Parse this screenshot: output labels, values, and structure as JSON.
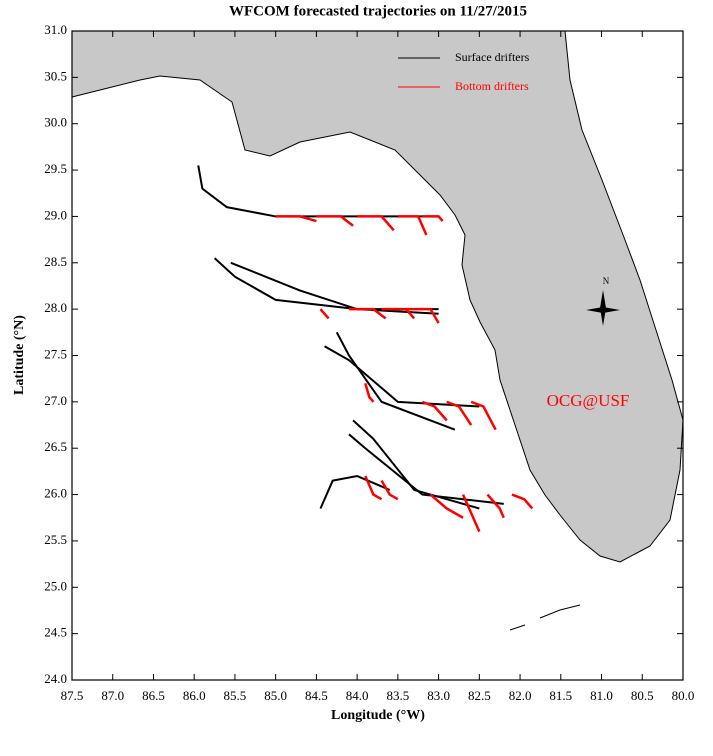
{
  "chart_data": {
    "type": "map",
    "title": "WFCOM forecasted trajectories on 11/27/2015",
    "x_label": "Longitude (°W)",
    "y_label": "Latitude (°N)",
    "annotation": "OCG@USF",
    "compass_label": "N",
    "legend": "top-right",
    "xlim": [
      87.5,
      80.0
    ],
    "ylim": [
      24.0,
      31.0
    ],
    "xticks": [
      87.5,
      {
        "value": 87,
        "label": "87.0"
      },
      86.5,
      {
        "value": 86,
        "label": "86.0"
      },
      85.5,
      {
        "value": 85,
        "label": "85.0"
      },
      84.5,
      {
        "value": 84,
        "label": "84.0"
      },
      83.5,
      {
        "value": 83,
        "label": "83.0"
      },
      82.5,
      {
        "value": 82,
        "label": "82.0"
      },
      81.5,
      {
        "value": 81,
        "label": "81.0"
      },
      80.5,
      {
        "value": 80,
        "label": "80.0"
      }
    ],
    "yticks": [
      {
        "value": 24,
        "label": "24.0"
      },
      24.5,
      {
        "value": 25,
        "label": "25.0"
      },
      25.5,
      {
        "value": 26,
        "label": "26.0"
      },
      26.5,
      {
        "value": 27,
        "label": "27.0"
      },
      27.5,
      {
        "value": 28,
        "label": "28.0"
      },
      28.5,
      {
        "value": 29,
        "label": "29.0"
      },
      29.5,
      {
        "value": 30,
        "label": "30.0"
      },
      30.5,
      {
        "value": 31,
        "label": "31.0"
      }
    ],
    "series": [
      {
        "name": "Surface drifters",
        "color": "#000000",
        "tracks": [
          {
            "x": [
              83.0,
              84.0,
              85.0,
              85.6,
              85.9,
              85.95
            ],
            "y": [
              29.0,
              29.0,
              29.0,
              29.1,
              29.3,
              29.55
            ]
          },
          {
            "x": [
              83.0,
              84.0,
              85.0,
              85.5,
              85.75
            ],
            "y": [
              28.0,
              28.0,
              28.1,
              28.35,
              28.55
            ]
          },
          {
            "x": [
              83.0,
              84.0,
              84.7,
              85.55
            ],
            "y": [
              27.95,
              28.0,
              28.2,
              28.5
            ]
          },
          {
            "x": [
              82.5,
              83.5,
              84.1,
              84.4
            ],
            "y": [
              26.95,
              27.0,
              27.45,
              27.6
            ]
          },
          {
            "x": [
              82.8,
              83.7,
              84.1,
              84.25
            ],
            "y": [
              26.7,
              27.0,
              27.5,
              27.75
            ]
          },
          {
            "x": [
              82.2,
              83.2,
              83.9,
              84.1
            ],
            "y": [
              25.9,
              26.0,
              26.5,
              26.65
            ]
          },
          {
            "x": [
              82.5,
              83.3,
              83.8,
              84.05
            ],
            "y": [
              25.85,
              26.05,
              26.6,
              26.8
            ]
          },
          {
            "x": [
              83.6,
              84.0,
              84.3,
              84.45
            ],
            "y": [
              26.05,
              26.2,
              26.15,
              25.85
            ]
          }
        ]
      },
      {
        "name": "Bottom drifters",
        "color": "#ff0000",
        "tracks": [
          {
            "x": [
              85.0,
              84.7,
              84.5
            ],
            "y": [
              29.0,
              29.0,
              28.95
            ]
          },
          {
            "x": [
              84.5,
              84.2,
              84.05
            ],
            "y": [
              29.0,
              29.0,
              28.9
            ]
          },
          {
            "x": [
              84.0,
              83.7,
              83.55
            ],
            "y": [
              29.0,
              29.0,
              28.85
            ]
          },
          {
            "x": [
              83.5,
              83.25,
              83.15
            ],
            "y": [
              29.0,
              29.0,
              28.8
            ]
          },
          {
            "x": [
              83.2,
              83.0,
              82.95
            ],
            "y": [
              29.0,
              29.0,
              28.95
            ]
          },
          {
            "x": [
              84.1,
              83.8,
              83.65
            ],
            "y": [
              28.0,
              28.0,
              27.9
            ]
          },
          {
            "x": [
              83.7,
              83.4,
              83.3
            ],
            "y": [
              28.0,
              28.0,
              27.9
            ]
          },
          {
            "x": [
              83.4,
              83.1,
              83.0
            ],
            "y": [
              28.0,
              28.0,
              27.85
            ]
          },
          {
            "x": [
              84.45,
              84.4,
              84.35
            ],
            "y": [
              28.0,
              27.95,
              27.9
            ]
          },
          {
            "x": [
              83.9,
              83.85,
              83.8
            ],
            "y": [
              27.2,
              27.05,
              27.0
            ]
          },
          {
            "x": [
              83.2,
              83.05,
              82.9
            ],
            "y": [
              27.0,
              26.95,
              26.8
            ]
          },
          {
            "x": [
              82.9,
              82.75,
              82.6
            ],
            "y": [
              27.0,
              26.95,
              26.75
            ]
          },
          {
            "x": [
              82.6,
              82.45,
              82.3
            ],
            "y": [
              27.0,
              26.95,
              26.7
            ]
          },
          {
            "x": [
              83.9,
              83.8,
              83.7
            ],
            "y": [
              26.2,
              26.0,
              25.95
            ]
          },
          {
            "x": [
              83.7,
              83.6,
              83.5
            ],
            "y": [
              26.15,
              26.0,
              25.95
            ]
          },
          {
            "x": [
              83.1,
              82.9,
              82.7
            ],
            "y": [
              26.0,
              25.85,
              25.75
            ]
          },
          {
            "x": [
              82.7,
              82.6,
              82.5
            ],
            "y": [
              26.0,
              25.8,
              25.6
            ]
          },
          {
            "x": [
              82.4,
              82.25,
              82.2
            ],
            "y": [
              26.0,
              25.85,
              25.75
            ]
          },
          {
            "x": [
              82.1,
              81.95,
              81.85
            ],
            "y": [
              26.0,
              25.95,
              25.85
            ]
          }
        ]
      }
    ]
  }
}
